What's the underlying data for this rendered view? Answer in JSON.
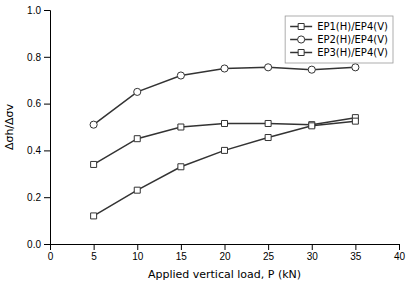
{
  "chart_data": {
    "type": "line",
    "xlabel": "Applied vertical load, P (kN)",
    "ylabel": "Δσh/Δσv",
    "x": [
      5,
      10,
      15,
      20,
      25,
      30,
      35
    ],
    "series": [
      {
        "name": "EP1(H)/EP4(V)",
        "color": "#333333",
        "marker": "square",
        "values": [
          0.34,
          0.45,
          0.5,
          0.515,
          0.515,
          0.51,
          0.54
        ]
      },
      {
        "name": "EP2(H)/EP4(V)",
        "color": "#333333",
        "marker": "circle",
        "values": [
          0.51,
          0.65,
          0.72,
          0.75,
          0.755,
          0.745,
          0.755
        ]
      },
      {
        "name": "EP3(H)/EP4(V)",
        "color": "#333333",
        "marker": "square",
        "values": [
          0.12,
          0.23,
          0.33,
          0.4,
          0.455,
          0.505,
          0.525
        ]
      }
    ],
    "xlim": [
      0,
      40
    ],
    "ylim": [
      0.0,
      1.0
    ],
    "xticks": [
      0,
      5,
      10,
      15,
      20,
      25,
      30,
      35,
      40
    ],
    "yticks": [
      {
        "value": 0.0,
        "label": "0.0"
      },
      0.2,
      0.4,
      0.6,
      0.8,
      {
        "value": 1.0,
        "label": "1.0"
      }
    ],
    "grid": false,
    "legend": "upper right"
  }
}
